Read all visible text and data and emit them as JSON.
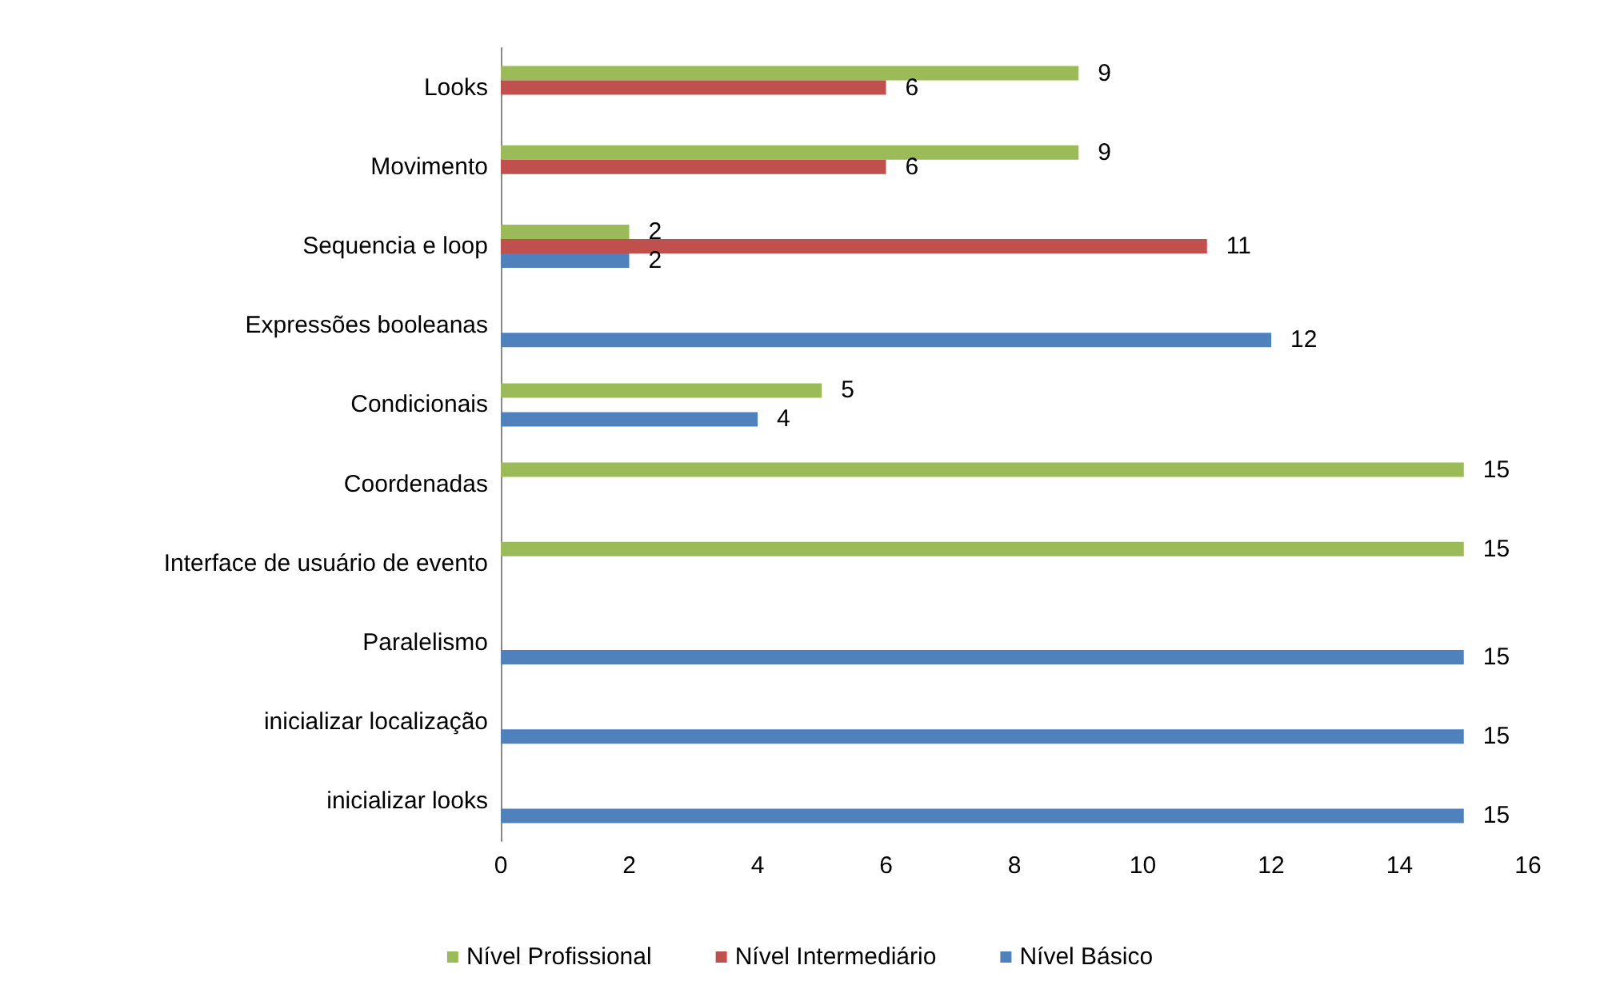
{
  "chart_data": {
    "type": "bar",
    "orientation": "horizontal",
    "categories": [
      "Looks",
      "Movimento",
      "Sequencia e loop",
      "Expressões booleanas",
      "Condicionais",
      "Coordenadas",
      "Interface de usuário de evento",
      "Paralelismo",
      "inicializar localização",
      "inicializar looks"
    ],
    "series": [
      {
        "name": "Nível Profissional",
        "color": "#9bbb59",
        "values": [
          9,
          9,
          2,
          null,
          5,
          15,
          15,
          null,
          null,
          null
        ]
      },
      {
        "name": "Nível Intermediário",
        "color": "#c0504d",
        "values": [
          6,
          6,
          11,
          null,
          null,
          null,
          null,
          null,
          null,
          null
        ]
      },
      {
        "name": "Nível Básico",
        "color": "#4f81bd",
        "values": [
          null,
          null,
          2,
          12,
          4,
          null,
          null,
          15,
          15,
          15
        ]
      }
    ],
    "xlim": [
      0,
      16
    ],
    "xticks": [
      0,
      2,
      4,
      6,
      8,
      10,
      12,
      14,
      16
    ],
    "data_labels": true,
    "legend": "bottom",
    "grid": false
  }
}
